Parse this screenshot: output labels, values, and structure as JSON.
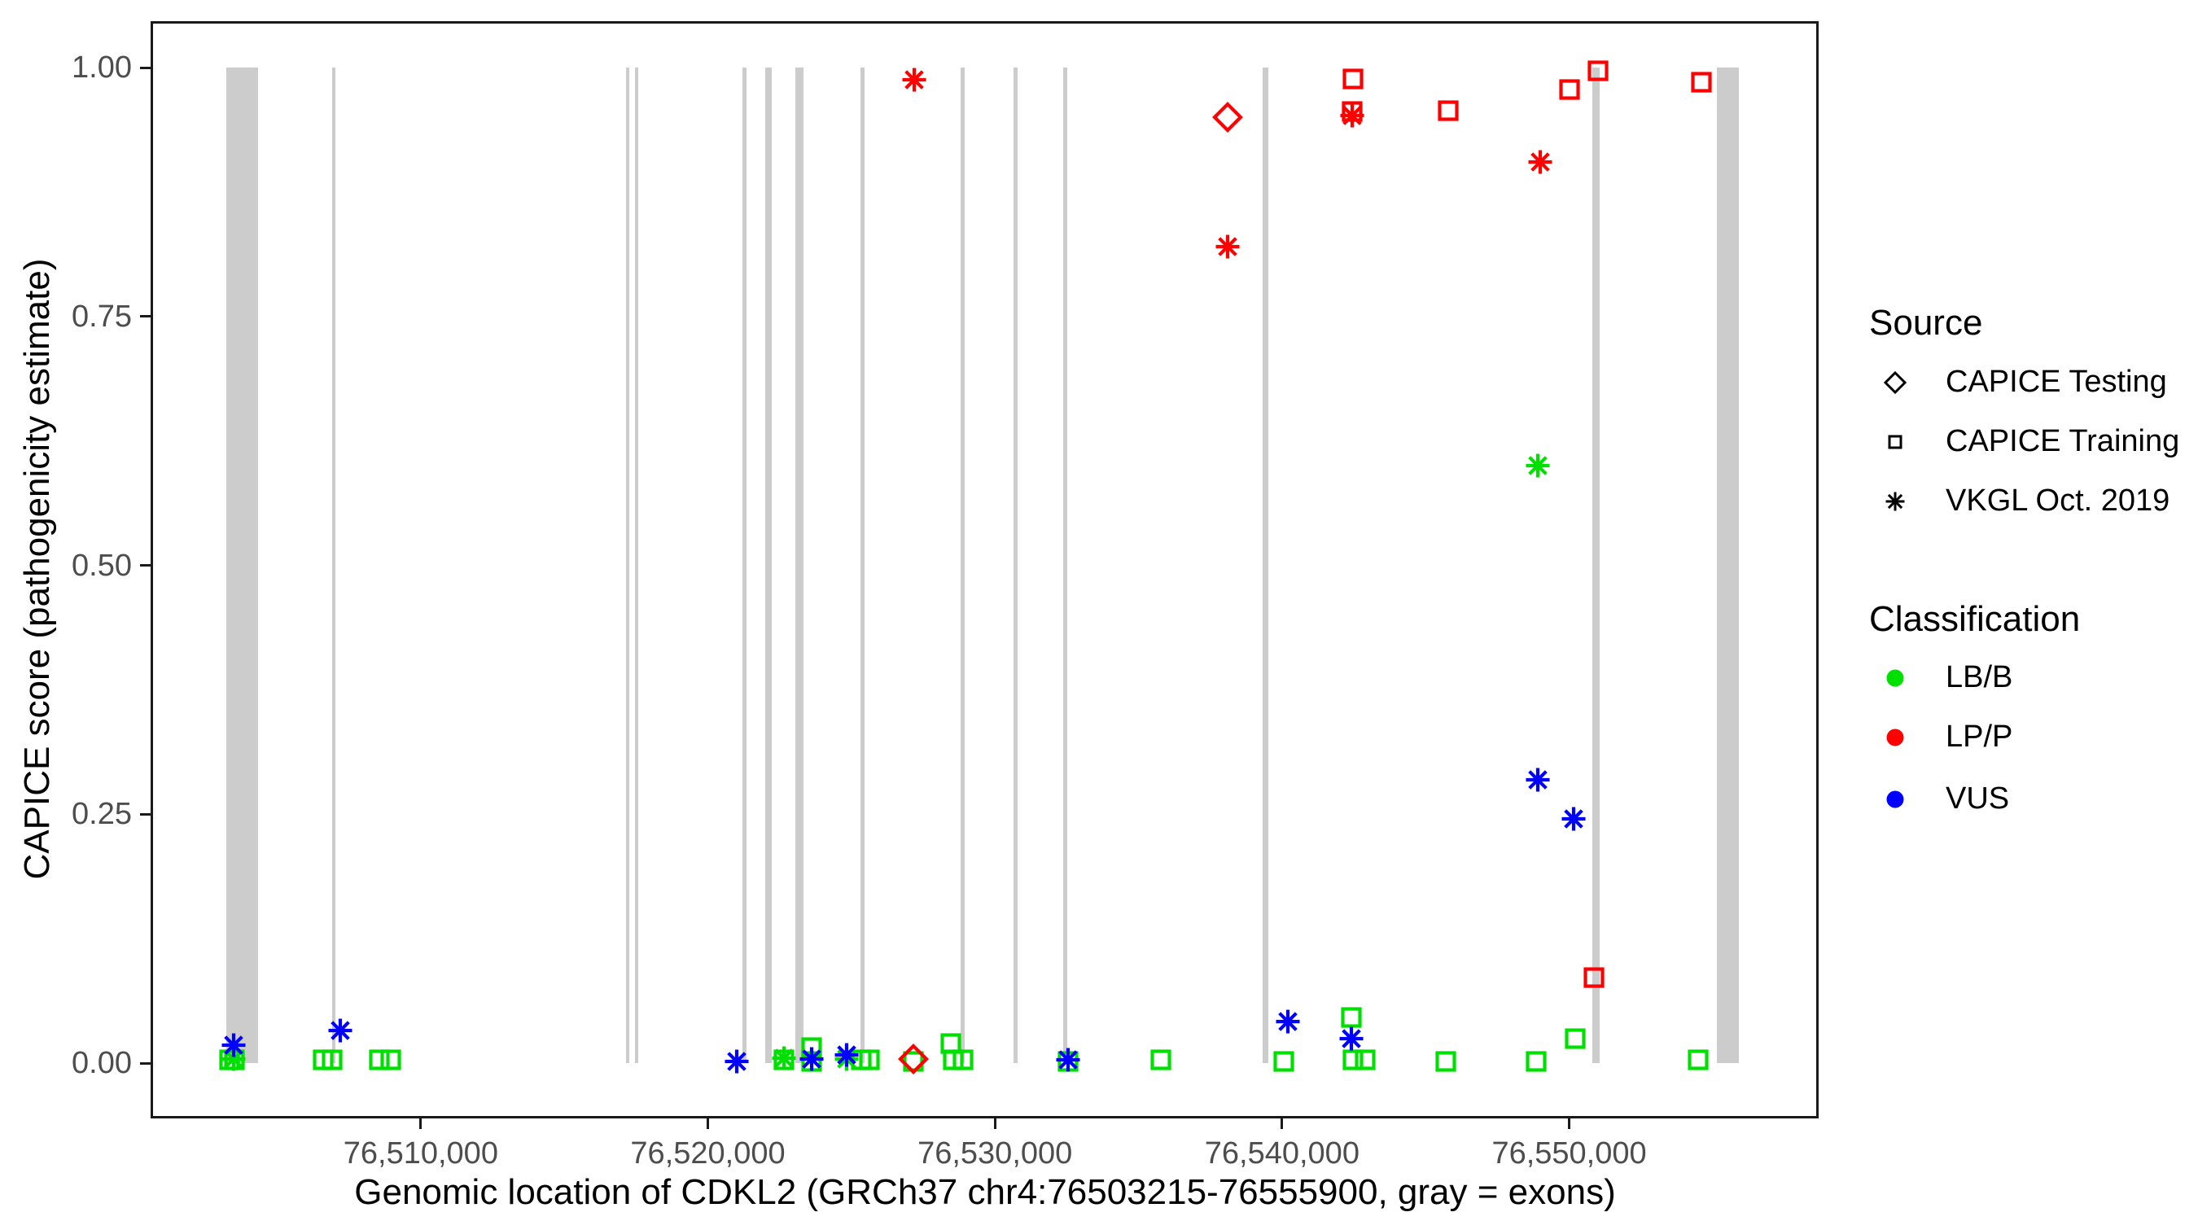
{
  "chart_data": {
    "type": "scatter",
    "title": "",
    "xlabel": "Genomic location of CDKL2 (GRCh37 chr4:76503215-76555900, gray = exons)",
    "ylabel": "CAPICE score (pathogenicity estimate)",
    "x_range": [
      76500590,
      76558690
    ],
    "y_range": [
      -0.0555,
      1.0467
    ],
    "grid": "off",
    "legend_position": "right",
    "x_ticks": [
      {
        "value": 76510000,
        "label": "76,510,000"
      },
      {
        "value": 76520000,
        "label": "76,520,000"
      },
      {
        "value": 76530000,
        "label": "76,530,000"
      },
      {
        "value": 76540000,
        "label": "76,540,000"
      },
      {
        "value": 76550000,
        "label": "76,550,000"
      }
    ],
    "y_ticks": [
      {
        "value": 0.0,
        "label": "0.00"
      },
      {
        "value": 0.25,
        "label": "0.25"
      },
      {
        "value": 0.5,
        "label": "0.50"
      },
      {
        "value": 0.75,
        "label": "0.75"
      },
      {
        "value": 1.0,
        "label": "1.00"
      }
    ],
    "exons": [
      [
        76503215,
        76504330
      ],
      [
        76506900,
        76507030
      ],
      [
        76517140,
        76517240
      ],
      [
        76517450,
        76517550
      ],
      [
        76521200,
        76521340
      ],
      [
        76521990,
        76522220
      ],
      [
        76523060,
        76523330
      ],
      [
        76525310,
        76525450
      ],
      [
        76528790,
        76528940
      ],
      [
        76530660,
        76530780
      ],
      [
        76532390,
        76532510
      ],
      [
        76539310,
        76539510
      ],
      [
        76550820,
        76551050
      ],
      [
        76555150,
        76555900
      ]
    ],
    "series": [
      {
        "name": "LB/B",
        "color": "#00e000",
        "points": [
          {
            "x": 76503350,
            "y": 0.003,
            "marker": "square",
            "source": "CAPICE Training"
          },
          {
            "x": 76503520,
            "y": 0.003,
            "marker": "square",
            "source": "CAPICE Training"
          },
          {
            "x": 76506600,
            "y": 0.003,
            "marker": "square",
            "source": "CAPICE Training"
          },
          {
            "x": 76506920,
            "y": 0.003,
            "marker": "square",
            "source": "CAPICE Training"
          },
          {
            "x": 76508550,
            "y": 0.003,
            "marker": "square",
            "source": "CAPICE Training"
          },
          {
            "x": 76508950,
            "y": 0.003,
            "marker": "square",
            "source": "CAPICE Training"
          },
          {
            "x": 76522640,
            "y": 0.003,
            "marker": "square",
            "source": "CAPICE Training"
          },
          {
            "x": 76523610,
            "y": 0.016,
            "marker": "square",
            "source": "CAPICE Training"
          },
          {
            "x": 76523610,
            "y": 0.002,
            "marker": "square",
            "source": "CAPICE Training"
          },
          {
            "x": 76525340,
            "y": 0.003,
            "marker": "square",
            "source": "CAPICE Training"
          },
          {
            "x": 76525630,
            "y": 0.003,
            "marker": "square",
            "source": "CAPICE Training"
          },
          {
            "x": 76527150,
            "y": 0.002,
            "marker": "square",
            "source": "CAPICE Training"
          },
          {
            "x": 76528460,
            "y": 0.02,
            "marker": "square",
            "source": "CAPICE Training"
          },
          {
            "x": 76528560,
            "y": 0.003,
            "marker": "square",
            "source": "CAPICE Training"
          },
          {
            "x": 76528880,
            "y": 0.003,
            "marker": "square",
            "source": "CAPICE Training"
          },
          {
            "x": 76532540,
            "y": 0.002,
            "marker": "square",
            "source": "CAPICE Training"
          },
          {
            "x": 76535780,
            "y": 0.003,
            "marker": "square",
            "source": "CAPICE Training"
          },
          {
            "x": 76540050,
            "y": 0.002,
            "marker": "square",
            "source": "CAPICE Training"
          },
          {
            "x": 76542460,
            "y": 0.003,
            "marker": "square",
            "source": "CAPICE Training"
          },
          {
            "x": 76542890,
            "y": 0.003,
            "marker": "square",
            "source": "CAPICE Training"
          },
          {
            "x": 76542400,
            "y": 0.046,
            "marker": "square",
            "source": "CAPICE Training"
          },
          {
            "x": 76545700,
            "y": 0.002,
            "marker": "square",
            "source": "CAPICE Training"
          },
          {
            "x": 76548850,
            "y": 0.002,
            "marker": "square",
            "source": "CAPICE Training"
          },
          {
            "x": 76550200,
            "y": 0.025,
            "marker": "square",
            "source": "CAPICE Training"
          },
          {
            "x": 76554500,
            "y": 0.003,
            "marker": "square",
            "source": "CAPICE Training"
          },
          {
            "x": 76503480,
            "y": 0.004,
            "marker": "asterisk",
            "source": "VKGL Oct. 2019"
          },
          {
            "x": 76522640,
            "y": 0.005,
            "marker": "asterisk",
            "source": "VKGL Oct. 2019"
          },
          {
            "x": 76524830,
            "y": 0.004,
            "marker": "asterisk",
            "source": "VKGL Oct. 2019"
          },
          {
            "x": 76548900,
            "y": 0.6,
            "marker": "asterisk",
            "source": "VKGL Oct. 2019"
          }
        ]
      },
      {
        "name": "VUS",
        "color": "#0000ff",
        "points": [
          {
            "x": 76503480,
            "y": 0.018,
            "marker": "asterisk",
            "source": "VKGL Oct. 2019"
          },
          {
            "x": 76507200,
            "y": 0.033,
            "marker": "asterisk",
            "source": "VKGL Oct. 2019"
          },
          {
            "x": 76521000,
            "y": 0.002,
            "marker": "asterisk",
            "source": "VKGL Oct. 2019"
          },
          {
            "x": 76523610,
            "y": 0.004,
            "marker": "asterisk",
            "source": "VKGL Oct. 2019"
          },
          {
            "x": 76524830,
            "y": 0.008,
            "marker": "asterisk",
            "source": "VKGL Oct. 2019"
          },
          {
            "x": 76532540,
            "y": 0.003,
            "marker": "asterisk",
            "source": "VKGL Oct. 2019"
          },
          {
            "x": 76540200,
            "y": 0.042,
            "marker": "asterisk",
            "source": "VKGL Oct. 2019"
          },
          {
            "x": 76542400,
            "y": 0.025,
            "marker": "asterisk",
            "source": "VKGL Oct. 2019"
          },
          {
            "x": 76548900,
            "y": 0.285,
            "marker": "asterisk",
            "source": "VKGL Oct. 2019"
          },
          {
            "x": 76550150,
            "y": 0.245,
            "marker": "asterisk",
            "source": "VKGL Oct. 2019"
          }
        ]
      },
      {
        "name": "LP/P",
        "color": "#ff0000",
        "points": [
          {
            "x": 76542460,
            "y": 0.989,
            "marker": "square",
            "source": "CAPICE Training"
          },
          {
            "x": 76542450,
            "y": 0.956,
            "marker": "square",
            "source": "CAPICE Training"
          },
          {
            "x": 76545800,
            "y": 0.957,
            "marker": "square",
            "source": "CAPICE Training"
          },
          {
            "x": 76550000,
            "y": 0.978,
            "marker": "square",
            "source": "CAPICE Training"
          },
          {
            "x": 76551000,
            "y": 0.997,
            "marker": "square",
            "source": "CAPICE Training"
          },
          {
            "x": 76550850,
            "y": 0.086,
            "marker": "square",
            "source": "CAPICE Training"
          },
          {
            "x": 76554600,
            "y": 0.985,
            "marker": "square",
            "source": "CAPICE Training"
          },
          {
            "x": 76527200,
            "y": 0.988,
            "marker": "asterisk",
            "source": "VKGL Oct. 2019"
          },
          {
            "x": 76538100,
            "y": 0.82,
            "marker": "asterisk",
            "source": "VKGL Oct. 2019"
          },
          {
            "x": 76542440,
            "y": 0.952,
            "marker": "asterisk",
            "source": "VKGL Oct. 2019"
          },
          {
            "x": 76549000,
            "y": 0.905,
            "marker": "asterisk",
            "source": "VKGL Oct. 2019"
          },
          {
            "x": 76538100,
            "y": 0.95,
            "marker": "diamond",
            "source": "CAPICE Testing"
          },
          {
            "x": 76527150,
            "y": 0.004,
            "marker": "diamond",
            "source": "CAPICE Testing"
          }
        ]
      }
    ]
  },
  "legend": {
    "source": {
      "title": "Source",
      "items": [
        {
          "label": "CAPICE Testing",
          "marker": "diamond"
        },
        {
          "label": "CAPICE Training",
          "marker": "square"
        },
        {
          "label": "VKGL Oct. 2019",
          "marker": "asterisk"
        }
      ]
    },
    "classification": {
      "title": "Classification",
      "items": [
        {
          "label": "LB/B",
          "color": "#00e000"
        },
        {
          "label": "LP/P",
          "color": "#ff0000"
        },
        {
          "label": "VUS",
          "color": "#0000ff"
        }
      ]
    }
  },
  "colors": {
    "exon": "#cccccc",
    "axis_text": "#4d4d4d",
    "axis_title": "#000000",
    "panel_border": "#1a1a1a",
    "background": "#ffffff"
  }
}
